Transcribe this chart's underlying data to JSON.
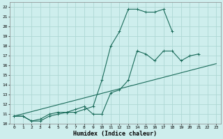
{
  "bg_color": "#ceeeed",
  "grid_color": "#aed8d4",
  "line_color": "#1a6b5a",
  "xlabel": "Humidex (Indice chaleur)",
  "xlim": [
    -0.5,
    23.5
  ],
  "ylim": [
    10,
    22.5
  ],
  "yticks": [
    10,
    11,
    12,
    13,
    14,
    15,
    16,
    17,
    18,
    19,
    20,
    21,
    22
  ],
  "xticks": [
    0,
    1,
    2,
    3,
    4,
    5,
    6,
    7,
    8,
    9,
    10,
    11,
    12,
    13,
    14,
    15,
    16,
    17,
    18,
    19,
    20,
    21,
    22,
    23
  ],
  "series1_x": [
    0,
    1,
    2,
    3,
    4,
    5,
    6,
    7,
    8,
    9,
    10,
    11,
    12,
    13,
    14,
    15,
    16,
    17,
    18
  ],
  "series1_y": [
    10.8,
    10.8,
    10.3,
    10.3,
    10.8,
    11.0,
    11.2,
    11.2,
    11.5,
    11.8,
    14.5,
    18.0,
    19.5,
    21.8,
    21.8,
    21.5,
    21.5,
    21.8,
    19.5
  ],
  "series2_x": [
    0,
    1,
    2,
    3,
    4,
    5,
    6,
    7,
    8,
    9,
    10,
    11,
    12,
    13,
    14,
    15,
    16,
    17,
    18,
    19,
    20,
    21
  ],
  "series2_y": [
    10.8,
    10.8,
    10.3,
    10.5,
    11.0,
    11.2,
    11.2,
    11.5,
    11.8,
    11.0,
    11.0,
    13.2,
    13.5,
    14.5,
    17.5,
    17.2,
    16.5,
    17.5,
    17.5,
    16.5,
    17.0,
    17.2
  ],
  "series3_x": [
    0,
    23
  ],
  "series3_y": [
    10.8,
    16.2
  ],
  "marker_size": 2.5,
  "line_width": 0.8
}
